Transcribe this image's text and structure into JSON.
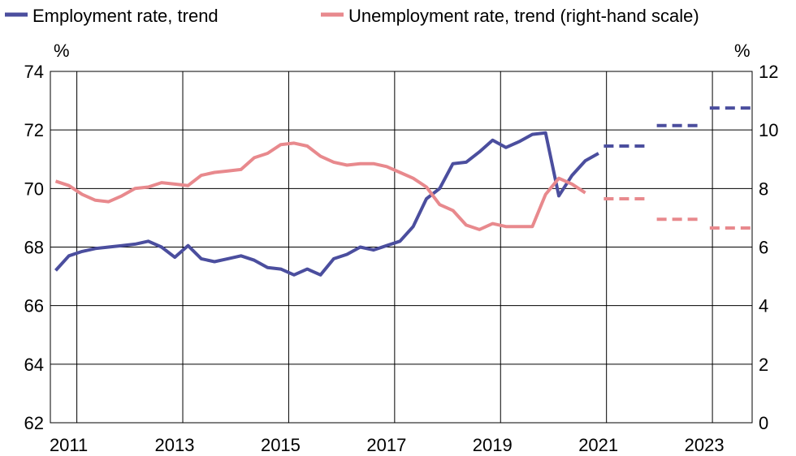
{
  "chart_data": {
    "type": "line",
    "title": "",
    "legend": {
      "placement": "top",
      "entries": [
        {
          "label": "Employment rate, trend",
          "color": "#4b4e9e"
        },
        {
          "label": "Unemployment rate, trend (right-hand scale)",
          "color": "#e8898d"
        }
      ]
    },
    "y_left": {
      "unit": "%",
      "ylim": [
        62,
        74
      ],
      "ticks": [
        "62",
        "64",
        "66",
        "68",
        "70",
        "72",
        "74"
      ]
    },
    "y_right": {
      "unit": "%",
      "ylim": [
        0,
        12
      ],
      "ticks": [
        "0",
        "2",
        "4",
        "6",
        "8",
        "10",
        "12"
      ]
    },
    "x": {
      "range": [
        2010.5,
        2023.75
      ],
      "ticks": [
        "2011",
        "2013",
        "2015",
        "2017",
        "2019",
        "2021",
        "2023"
      ]
    },
    "grid": true,
    "series": [
      {
        "name": "Employment rate, trend",
        "axis": "left",
        "color": "#4b4e9e",
        "points": [
          [
            2010.6,
            67.2
          ],
          [
            2010.85,
            67.7
          ],
          [
            2011.1,
            67.85
          ],
          [
            2011.35,
            67.95
          ],
          [
            2011.6,
            68.0
          ],
          [
            2011.85,
            68.05
          ],
          [
            2012.1,
            68.1
          ],
          [
            2012.35,
            68.2
          ],
          [
            2012.6,
            68.0
          ],
          [
            2012.85,
            67.65
          ],
          [
            2013.1,
            68.05
          ],
          [
            2013.35,
            67.6
          ],
          [
            2013.6,
            67.5
          ],
          [
            2013.85,
            67.6
          ],
          [
            2014.1,
            67.7
          ],
          [
            2014.35,
            67.55
          ],
          [
            2014.6,
            67.3
          ],
          [
            2014.85,
            67.25
          ],
          [
            2015.1,
            67.05
          ],
          [
            2015.35,
            67.25
          ],
          [
            2015.6,
            67.05
          ],
          [
            2015.85,
            67.6
          ],
          [
            2016.1,
            67.75
          ],
          [
            2016.35,
            68.0
          ],
          [
            2016.6,
            67.9
          ],
          [
            2016.85,
            68.05
          ],
          [
            2017.1,
            68.2
          ],
          [
            2017.35,
            68.7
          ],
          [
            2017.6,
            69.65
          ],
          [
            2017.85,
            70.0
          ],
          [
            2018.1,
            70.85
          ],
          [
            2018.35,
            70.9
          ],
          [
            2018.6,
            71.25
          ],
          [
            2018.85,
            71.65
          ],
          [
            2019.1,
            71.4
          ],
          [
            2019.35,
            71.6
          ],
          [
            2019.6,
            71.85
          ],
          [
            2019.85,
            71.9
          ],
          [
            2020.1,
            69.75
          ],
          [
            2020.35,
            70.45
          ],
          [
            2020.6,
            70.95
          ],
          [
            2020.85,
            71.2
          ]
        ],
        "forecast": [
          {
            "x": [
              2020.95,
              2021.8
            ],
            "y": 71.45
          },
          {
            "x": [
              2021.95,
              2022.8
            ],
            "y": 72.15
          },
          {
            "x": [
              2022.95,
              2023.8
            ],
            "y": 72.75
          }
        ]
      },
      {
        "name": "Unemployment rate, trend (right-hand scale)",
        "axis": "right",
        "color": "#e8898d",
        "points": [
          [
            2010.6,
            8.25
          ],
          [
            2010.85,
            8.1
          ],
          [
            2011.1,
            7.8
          ],
          [
            2011.35,
            7.6
          ],
          [
            2011.6,
            7.55
          ],
          [
            2011.85,
            7.75
          ],
          [
            2012.1,
            8.0
          ],
          [
            2012.35,
            8.05
          ],
          [
            2012.6,
            8.2
          ],
          [
            2012.85,
            8.15
          ],
          [
            2013.1,
            8.1
          ],
          [
            2013.35,
            8.45
          ],
          [
            2013.6,
            8.55
          ],
          [
            2013.85,
            8.6
          ],
          [
            2014.1,
            8.65
          ],
          [
            2014.35,
            9.05
          ],
          [
            2014.6,
            9.2
          ],
          [
            2014.85,
            9.5
          ],
          [
            2015.1,
            9.55
          ],
          [
            2015.35,
            9.45
          ],
          [
            2015.6,
            9.1
          ],
          [
            2015.85,
            8.9
          ],
          [
            2016.1,
            8.8
          ],
          [
            2016.35,
            8.85
          ],
          [
            2016.6,
            8.85
          ],
          [
            2016.85,
            8.75
          ],
          [
            2017.1,
            8.55
          ],
          [
            2017.35,
            8.35
          ],
          [
            2017.6,
            8.05
          ],
          [
            2017.85,
            7.45
          ],
          [
            2018.1,
            7.25
          ],
          [
            2018.35,
            6.75
          ],
          [
            2018.6,
            6.6
          ],
          [
            2018.85,
            6.8
          ],
          [
            2019.1,
            6.7
          ],
          [
            2019.35,
            6.7
          ],
          [
            2019.6,
            6.7
          ],
          [
            2019.85,
            7.8
          ],
          [
            2020.1,
            8.35
          ],
          [
            2020.35,
            8.15
          ],
          [
            2020.6,
            7.85
          ]
        ],
        "forecast": [
          {
            "x": [
              2020.95,
              2021.8
            ],
            "y": 7.65
          },
          {
            "x": [
              2021.95,
              2022.8
            ],
            "y": 6.95
          },
          {
            "x": [
              2022.95,
              2023.8
            ],
            "y": 6.65
          }
        ]
      }
    ]
  }
}
